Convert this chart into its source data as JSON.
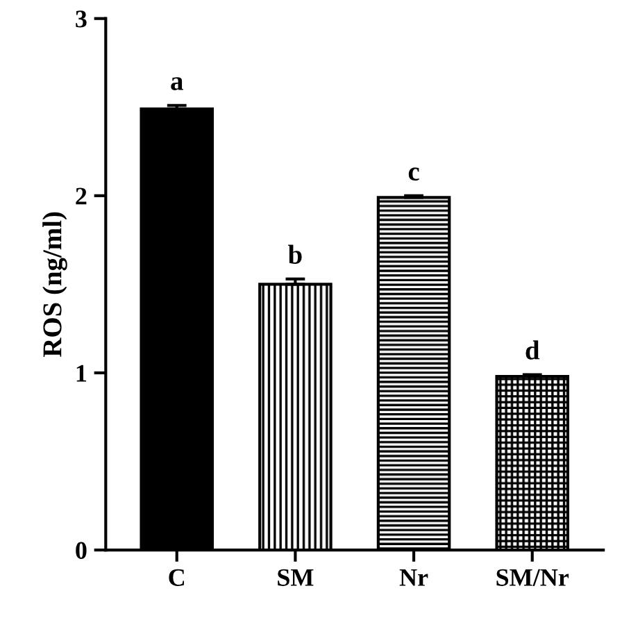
{
  "chart_data": {
    "type": "bar",
    "ylabel": "ROS (ng/ml)",
    "categories": [
      "C",
      "SM",
      "Nr",
      "SM/Nr"
    ],
    "values": [
      2.49,
      1.5,
      1.99,
      0.98
    ],
    "errors": [
      0.02,
      0.03,
      0.01,
      0.01
    ],
    "colors": [
      "#000000",
      "#000000",
      "#000000",
      "#000000"
    ],
    "ylim": [
      0,
      3
    ],
    "yticks": [
      0,
      1,
      2,
      3
    ],
    "grid": false,
    "legend": false,
    "annotations": [
      {
        "text": "a",
        "x": "C",
        "y": 2.51
      },
      {
        "text": "b",
        "x": "SM",
        "y": 1.53
      },
      {
        "text": "c",
        "x": "Nr",
        "y": 2.0
      },
      {
        "text": "d",
        "x": "SM/Nr",
        "y": 0.99
      }
    ]
  }
}
